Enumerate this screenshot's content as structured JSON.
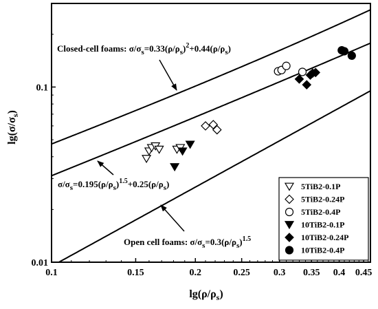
{
  "chart_data": {
    "type": "scatter",
    "x_scale": "log",
    "y_scale": "log",
    "xlim": [
      0.1,
      0.465
    ],
    "ylim": [
      0.01,
      0.3
    ],
    "xlabel": {
      "main": "lg(ρ/ρ",
      "sub": "s",
      "close": ")"
    },
    "ylabel": {
      "main": "lg(σ/σ",
      "sub": "s",
      "close": ")"
    },
    "x_ticks": [
      {
        "value": 0.1,
        "label": "0.1"
      },
      {
        "value": 0.15,
        "label": "0.15"
      },
      {
        "value": 0.2,
        "label": "0.2"
      },
      {
        "value": 0.25,
        "label": "0.25"
      },
      {
        "value": 0.3,
        "label": "0.3"
      },
      {
        "value": 0.35,
        "label": "0.35"
      },
      {
        "value": 0.4,
        "label": "0.4"
      },
      {
        "value": 0.45,
        "label": "0.45"
      }
    ],
    "y_ticks": [
      {
        "value": 0.01,
        "label": "0.01"
      },
      {
        "value": 0.1,
        "label": "0.1"
      }
    ],
    "series": [
      {
        "name": "5TiB2-0.1P",
        "marker": "triangle-down-open",
        "points": [
          [
            0.158,
            0.039
          ],
          [
            0.16,
            0.043
          ],
          [
            0.162,
            0.045
          ],
          [
            0.165,
            0.046
          ],
          [
            0.168,
            0.044
          ],
          [
            0.183,
            0.044
          ],
          [
            0.186,
            0.045
          ]
        ]
      },
      {
        "name": "5TiB2-0.24P",
        "marker": "diamond-open",
        "points": [
          [
            0.21,
            0.06
          ],
          [
            0.218,
            0.061
          ],
          [
            0.222,
            0.057
          ]
        ]
      },
      {
        "name": "5TiB2-0.4P",
        "marker": "circle-open",
        "points": [
          [
            0.298,
            0.123
          ],
          [
            0.303,
            0.125
          ],
          [
            0.31,
            0.132
          ],
          [
            0.335,
            0.122
          ]
        ]
      },
      {
        "name": "10TiB2-0.1P",
        "marker": "triangle-down-filled",
        "points": [
          [
            0.181,
            0.035
          ],
          [
            0.188,
            0.043
          ],
          [
            0.195,
            0.047
          ]
        ]
      },
      {
        "name": "10TiB2-0.24P",
        "marker": "diamond-filled",
        "points": [
          [
            0.33,
            0.111
          ],
          [
            0.342,
            0.103
          ],
          [
            0.348,
            0.117
          ],
          [
            0.352,
            0.12
          ],
          [
            0.357,
            0.121
          ]
        ]
      },
      {
        "name": "10TiB2-0.4P",
        "marker": "circle-filled",
        "points": [
          [
            0.405,
            0.162
          ],
          [
            0.41,
            0.16
          ],
          [
            0.425,
            0.151
          ]
        ]
      }
    ],
    "curves": [
      {
        "id": "closed-cell",
        "a": 0.33,
        "b": 0.44,
        "pow": 2
      },
      {
        "id": "mid",
        "a": 0.195,
        "b": 0.25,
        "pow": 1.5
      },
      {
        "id": "open-cell",
        "a": 0.3,
        "b": 0,
        "pow": 1.5
      }
    ],
    "annotations": {
      "closed": {
        "prefix": "Closed-cell foams: σ/σ",
        "sub1": "s",
        "eq": "=0.33(ρ/ρ",
        "sub2": "s",
        "close": ")",
        "sup": "2",
        "rest": "+0.44(ρ/ρ",
        "sub3": "s",
        "end": ")"
      },
      "mid": {
        "prefix": "σ/σ",
        "sub1": "s",
        "eq": "=0.195(ρ/ρ",
        "sub2": "s",
        "close": ")",
        "sup": "1.5",
        "rest": "+0.25(ρ/ρ",
        "sub3": "s",
        "end": ")"
      },
      "open": {
        "prefix": "Open cell foams: σ/σ",
        "sub1": "s",
        "eq": "=0.3(ρ/ρ",
        "sub2": "s",
        "close": ")",
        "sup": "1.5"
      }
    },
    "legend_position": "bottom-right",
    "grid": false
  }
}
